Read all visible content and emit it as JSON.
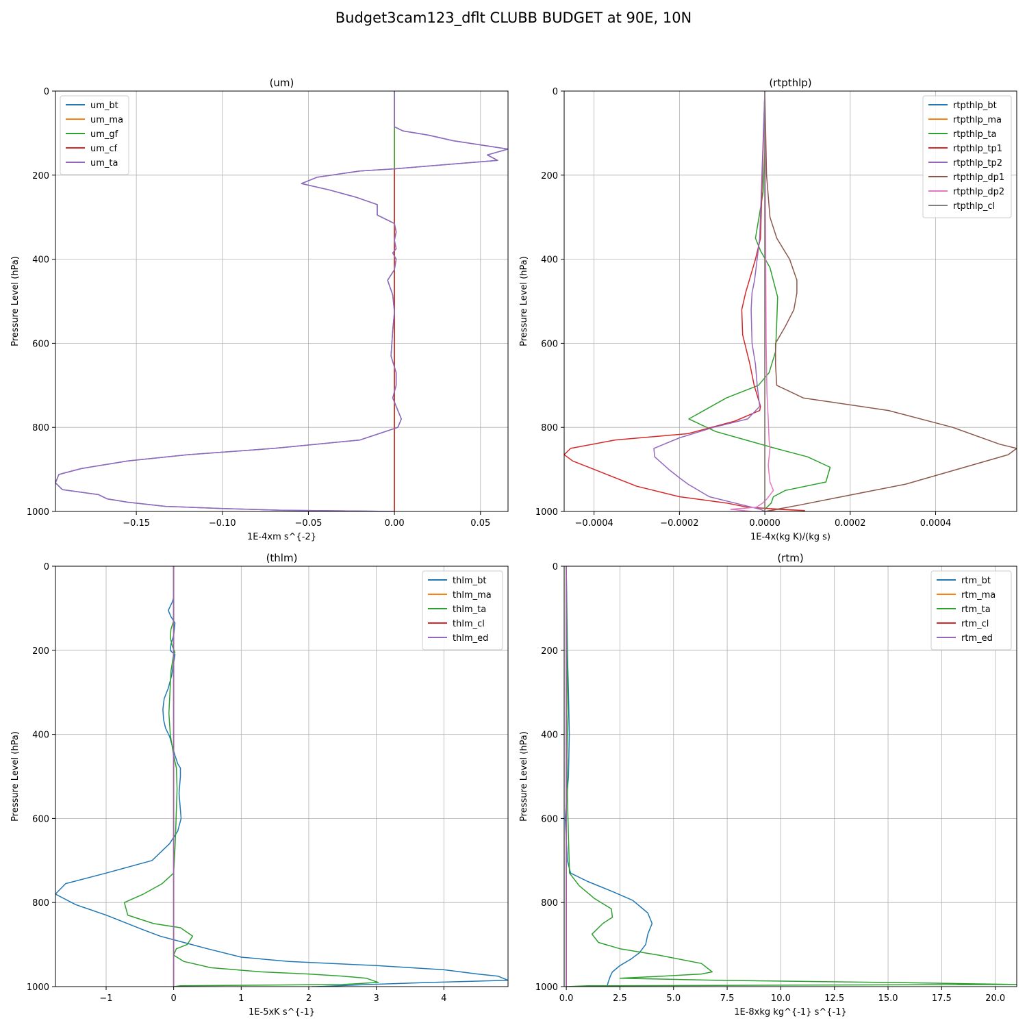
{
  "suptitle": "Budget3cam123_dflt CLUBB BUDGET at 90E, 10N",
  "chart_data": [
    {
      "type": "line",
      "title": "(um)",
      "xlabel": "1E-4xm s^{-2}",
      "ylabel": "Pressure Level (hPa)",
      "xlim": [
        -0.197,
        0.066
      ],
      "ylim": [
        1000,
        0
      ],
      "xticks": [
        -0.15,
        -0.1,
        -0.05,
        0.0,
        0.05
      ],
      "xtick_labels": [
        "−0.15",
        "−0.10",
        "−0.05",
        "0.00",
        "0.05"
      ],
      "yticks": [
        0,
        200,
        400,
        600,
        800,
        1000
      ],
      "ytick_labels": [
        "0",
        "200",
        "400",
        "600",
        "800",
        "1000"
      ],
      "grid": true,
      "legend": "upper left",
      "series": [
        {
          "name": "um_bt",
          "color": "#1f77b4",
          "x": [
            0,
            0,
            0,
            0.005,
            0.02,
            0.034,
            0.066,
            0.054,
            0.06,
            0.03,
            0,
            -0.02,
            -0.045,
            -0.054,
            -0.038,
            -0.022,
            -0.01,
            -0.01,
            0,
            0.001,
            0,
            0.001,
            -0.001,
            0.001,
            0,
            -0.004,
            -0.001,
            0,
            -0.001,
            -0.002,
            0.001,
            0.001,
            -0.001,
            0.004,
            0.002,
            -0.02,
            -0.07,
            -0.12,
            -0.155,
            -0.182,
            -0.195,
            -0.197,
            -0.193,
            -0.172,
            -0.167,
            -0.155,
            -0.133,
            -0.1,
            -0.066,
            0
          ],
          "y": [
            0,
            50,
            85,
            95,
            105,
            118,
            138,
            152,
            165,
            175,
            185,
            190,
            205,
            220,
            235,
            253,
            270,
            295,
            315,
            335,
            355,
            375,
            385,
            400,
            425,
            450,
            485,
            525,
            570,
            630,
            670,
            700,
            730,
            780,
            800,
            830,
            850,
            865,
            880,
            898,
            912,
            932,
            948,
            960,
            970,
            978,
            988,
            993,
            997,
            1000
          ]
        },
        {
          "name": "um_ma",
          "color": "#ff7f0e",
          "x": [
            0,
            0
          ],
          "y": [
            0,
            1000
          ]
        },
        {
          "name": "um_gf",
          "color": "#2ca02c",
          "x": [
            0,
            0
          ],
          "y": [
            0,
            1000
          ]
        },
        {
          "name": "um_cf",
          "color": "#d62728",
          "x": [
            0,
            0
          ],
          "y": [
            185,
            1000
          ]
        },
        {
          "name": "um_ta",
          "color": "#9467bd",
          "x": [
            0,
            0,
            0,
            0.005,
            0.02,
            0.034,
            0.066,
            0.054,
            0.06,
            0.03,
            0,
            -0.02,
            -0.045,
            -0.054,
            -0.038,
            -0.022,
            -0.01,
            -0.01,
            0,
            0.001,
            0,
            0.001,
            -0.001,
            0.001,
            0,
            -0.004,
            -0.001,
            0,
            -0.001,
            -0.002,
            0.001,
            0.001,
            -0.001,
            0.004,
            0.002,
            -0.02,
            -0.07,
            -0.12,
            -0.155,
            -0.182,
            -0.195,
            -0.197,
            -0.193,
            -0.172,
            -0.167,
            -0.155,
            -0.133,
            -0.1,
            -0.066,
            0
          ],
          "y": [
            0,
            50,
            85,
            95,
            105,
            118,
            138,
            152,
            165,
            175,
            185,
            190,
            205,
            220,
            235,
            253,
            270,
            295,
            315,
            335,
            355,
            375,
            385,
            400,
            425,
            450,
            485,
            525,
            570,
            630,
            670,
            700,
            730,
            780,
            800,
            830,
            850,
            865,
            880,
            898,
            912,
            932,
            948,
            960,
            970,
            978,
            988,
            993,
            997,
            1000
          ]
        }
      ]
    },
    {
      "type": "line",
      "title": "(rtpthlp)",
      "xlabel": "1E-4x(kg K)/(kg s)",
      "ylabel": "Pressure Level (hPa)",
      "xlim": [
        -0.00047,
        0.00059
      ],
      "ylim": [
        1000,
        0
      ],
      "xticks": [
        -0.0004,
        -0.0002,
        0.0,
        0.0002,
        0.0004
      ],
      "xtick_labels": [
        "−0.0004",
        "−0.0002",
        "0.0000",
        "0.0002",
        "0.0004"
      ],
      "yticks": [
        0,
        200,
        400,
        600,
        800,
        1000
      ],
      "ytick_labels": [
        "0",
        "200",
        "400",
        "600",
        "800",
        "1000"
      ],
      "grid": true,
      "legend": "upper right",
      "series": [
        {
          "name": "rtpthlp_bt",
          "color": "#1f77b4",
          "x": [
            0,
            0
          ],
          "y": [
            0,
            1000
          ]
        },
        {
          "name": "rtpthlp_ma",
          "color": "#ff7f0e",
          "x": [
            0,
            0
          ],
          "y": [
            0,
            1000
          ]
        },
        {
          "name": "rtpthlp_ta",
          "color": "#2ca02c",
          "x": [
            0,
            0,
            -4e-06,
            -1.2e-05,
            -2.2e-05,
            -1e-05,
            1.2e-05,
            3e-05,
            2.8e-05,
            2.5e-05,
            1e-05,
            -1.5e-05,
            -9e-05,
            -0.000178,
            -0.000115,
            2.5e-05,
            0.0001,
            0.000153,
            0.000143,
            4.8e-05,
            2e-05,
            1.5e-05,
            5e-06,
            0,
            0
          ],
          "y": [
            0,
            140,
            240,
            290,
            350,
            380,
            420,
            490,
            550,
            620,
            670,
            700,
            730,
            780,
            810,
            850,
            870,
            895,
            930,
            950,
            965,
            980,
            990,
            995,
            1000
          ]
        },
        {
          "name": "rtpthlp_tp1",
          "color": "#d62728",
          "x": [
            0,
            -1e-05,
            -2.2e-05,
            -4.5e-05,
            -5.4e-05,
            -5.2e-05,
            -3.5e-05,
            -2.5e-05,
            -1e-05,
            -1.2e-05,
            -7e-05,
            -0.00018,
            -0.00035,
            -0.000455,
            -0.00047,
            -0.00045,
            -0.0004,
            -0.0003,
            -0.0002,
            -9e-05,
            -4e-05,
            9.3e-05,
            3e-05,
            3e-06,
            0
          ],
          "y": [
            0,
            350,
            400,
            480,
            520,
            580,
            650,
            700,
            750,
            760,
            785,
            815,
            830,
            850,
            865,
            880,
            900,
            940,
            965,
            980,
            990,
            998,
            995,
            1000,
            1000
          ]
        },
        {
          "name": "rtpthlp_tp2",
          "color": "#9467bd",
          "x": [
            0,
            -1.2e-05,
            -2.4e-05,
            -3e-05,
            -3.2e-05,
            -3e-05,
            -2.2e-05,
            -1.8e-05,
            -1.2e-05,
            -4e-05,
            -0.00012,
            -0.0002,
            -0.00026,
            -0.000258,
            -0.000225,
            -0.0002,
            -0.00018,
            -0.00013,
            -5e-05,
            -1e-05,
            0
          ],
          "y": [
            0,
            350,
            450,
            480,
            520,
            600,
            650,
            700,
            750,
            780,
            800,
            825,
            850,
            870,
            900,
            920,
            935,
            965,
            985,
            995,
            1000
          ]
        },
        {
          "name": "rtpthlp_dp1",
          "color": "#8c564b",
          "x": [
            0,
            4e-06,
            8e-06,
            1.2e-05,
            2.8e-05,
            5.8e-05,
            7.5e-05,
            7.5e-05,
            6.8e-05,
            4.8e-05,
            2.5e-05,
            2.5e-05,
            2.8e-05,
            9e-05,
            0.00029,
            0.00044,
            0.00055,
            0.00059,
            0.00057,
            0.00045,
            0.00033,
            0.00018,
            8e-05,
            0
          ],
          "y": [
            0,
            200,
            250,
            300,
            350,
            400,
            450,
            480,
            520,
            560,
            600,
            650,
            700,
            730,
            760,
            800,
            840,
            850,
            865,
            900,
            935,
            965,
            985,
            1000
          ]
        },
        {
          "name": "rtpthlp_dp2",
          "color": "#e377c2",
          "x": [
            0,
            3e-06,
            5e-06,
            8e-06,
            1e-05,
            1.2e-05,
            1e-05,
            8e-06,
            1e-05,
            1.2e-05,
            2e-05,
            5e-06,
            -5e-06,
            -2e-05,
            -8e-05,
            -3e-05,
            4e-05,
            0
          ],
          "y": [
            0,
            600,
            720,
            780,
            830,
            850,
            870,
            890,
            910,
            930,
            950,
            970,
            980,
            990,
            995,
            1000,
            1000,
            1000
          ]
        },
        {
          "name": "rtpthlp_cl",
          "color": "#7f7f7f",
          "x": [
            0,
            0
          ],
          "y": [
            0,
            1000
          ]
        }
      ]
    },
    {
      "type": "line",
      "title": "(thlm)",
      "xlabel": "1E-5xK s^{-1}",
      "ylabel": "Pressure Level (hPa)",
      "xlim": [
        -1.75,
        4.95
      ],
      "ylim": [
        1000,
        0
      ],
      "xticks": [
        -1,
        0,
        1,
        2,
        3,
        4
      ],
      "xtick_labels": [
        "−1",
        "0",
        "1",
        "2",
        "3",
        "4"
      ],
      "yticks": [
        0,
        200,
        400,
        600,
        800,
        1000
      ],
      "ytick_labels": [
        "0",
        "200",
        "400",
        "600",
        "800",
        "1000"
      ],
      "grid": true,
      "legend": "upper right",
      "series": [
        {
          "name": "thlm_bt",
          "color": "#1f77b4",
          "x": [
            0,
            0,
            -0.02,
            -0.08,
            -0.04,
            0.02,
            0,
            -0.04,
            -0.05,
            -0.02,
            0.02,
            0.01,
            -0.03,
            -0.08,
            -0.14,
            -0.16,
            -0.15,
            -0.12,
            -0.06,
            0.02,
            0.06,
            0.1,
            0.1,
            0.08,
            0.11,
            0.06,
            -0.06,
            -0.32,
            -1.0,
            -1.6,
            -1.75,
            -1.45,
            -1.0,
            -0.45,
            -0.2,
            0.15,
            0.5,
            1.0,
            1.7,
            3.0,
            4.0,
            4.5,
            4.8,
            4.95,
            3.8,
            2.9,
            2.1,
            2.05
          ],
          "y": [
            0,
            75,
            85,
            105,
            120,
            135,
            165,
            185,
            200,
            205,
            210,
            220,
            260,
            290,
            315,
            340,
            365,
            385,
            405,
            450,
            470,
            480,
            500,
            540,
            600,
            630,
            660,
            700,
            730,
            755,
            780,
            805,
            830,
            865,
            880,
            895,
            910,
            930,
            940,
            950,
            960,
            970,
            975,
            985,
            990,
            995,
            1000,
            1000
          ]
        },
        {
          "name": "thlm_ma",
          "color": "#ff7f0e",
          "x": [
            0,
            0
          ],
          "y": [
            0,
            1000
          ]
        },
        {
          "name": "thlm_ta",
          "color": "#2ca02c",
          "x": [
            0,
            0,
            -0.04,
            -0.05,
            -0.02,
            0.02,
            0,
            -0.04,
            -0.07,
            -0.05,
            0,
            0.04,
            0.05,
            0.03,
            0.02,
            0,
            -0.17,
            -0.45,
            -0.73,
            -0.68,
            -0.3,
            0.1,
            0.28,
            0.2,
            0.04,
            0,
            0.15,
            0.55,
            1.3,
            2.0,
            2.5,
            2.85,
            3.03,
            2.5,
            0.1,
            0
          ],
          "y": [
            0,
            130,
            150,
            170,
            190,
            205,
            210,
            250,
            350,
            400,
            450,
            480,
            530,
            630,
            670,
            730,
            755,
            780,
            800,
            830,
            850,
            860,
            880,
            900,
            910,
            925,
            940,
            955,
            965,
            970,
            975,
            980,
            990,
            995,
            998,
            1000
          ]
        },
        {
          "name": "thlm_cl",
          "color": "#d62728",
          "x": [
            0,
            0
          ],
          "y": [
            0,
            1000
          ]
        },
        {
          "name": "thlm_ed",
          "color": "#9467bd",
          "x": [
            0,
            0
          ],
          "y": [
            0,
            1000
          ]
        }
      ]
    },
    {
      "type": "line",
      "title": "(rtm)",
      "xlabel": "1E-8xkg kg^{-1} s^{-1}",
      "ylabel": "Pressure Level (hPa)",
      "xlim": [
        -0.1,
        21.0
      ],
      "ylim": [
        1000,
        0
      ],
      "xticks": [
        0,
        2.5,
        5,
        7.5,
        10,
        12.5,
        15,
        17.5,
        20
      ],
      "xtick_labels": [
        "0.0",
        "2.5",
        "5.0",
        "7.5",
        "10.0",
        "12.5",
        "15.0",
        "17.5",
        "20.0"
      ],
      "yticks": [
        0,
        200,
        400,
        600,
        800,
        1000
      ],
      "ytick_labels": [
        "0",
        "200",
        "400",
        "600",
        "800",
        "1000"
      ],
      "grid": true,
      "legend": "upper right",
      "series": [
        {
          "name": "rtm_bt",
          "color": "#1f77b4",
          "x": [
            0,
            0.05,
            0.1,
            0.12,
            0.14,
            0.12,
            0.1,
            0.02,
            -0.05,
            0,
            0.05,
            0.2,
            1.0,
            2.2,
            3.1,
            3.8,
            4.0,
            3.8,
            3.7,
            3.4,
            3.0,
            2.5,
            2.15,
            2.05,
            1.95,
            1.9,
            0
          ],
          "y": [
            0,
            200,
            300,
            350,
            400,
            450,
            500,
            550,
            600,
            650,
            700,
            730,
            750,
            775,
            795,
            825,
            850,
            875,
            900,
            920,
            935,
            950,
            965,
            975,
            990,
            1000,
            1000
          ]
        },
        {
          "name": "rtm_ma",
          "color": "#ff7f0e",
          "x": [
            0,
            0
          ],
          "y": [
            0,
            1000
          ]
        },
        {
          "name": "rtm_ta",
          "color": "#2ca02c",
          "x": [
            0,
            0.03,
            0.06,
            0.08,
            0.05,
            0.03,
            0.05,
            0.15,
            0.6,
            1.3,
            2.1,
            2.15,
            1.7,
            1.2,
            1.5,
            2.5,
            4.3,
            6.3,
            6.8,
            6.3,
            4.5,
            2.5,
            7.0,
            15.0,
            21.0,
            1.0,
            0
          ],
          "y": [
            0,
            200,
            300,
            350,
            400,
            450,
            550,
            730,
            760,
            790,
            815,
            835,
            850,
            875,
            895,
            910,
            925,
            945,
            965,
            970,
            975,
            980,
            985,
            990,
            995,
            998,
            1000
          ]
        },
        {
          "name": "rtm_cl",
          "color": "#d62728",
          "x": [
            0,
            0
          ],
          "y": [
            0,
            1000
          ]
        },
        {
          "name": "rtm_ed",
          "color": "#9467bd",
          "x": [
            0,
            0
          ],
          "y": [
            0,
            1000
          ]
        }
      ]
    }
  ]
}
